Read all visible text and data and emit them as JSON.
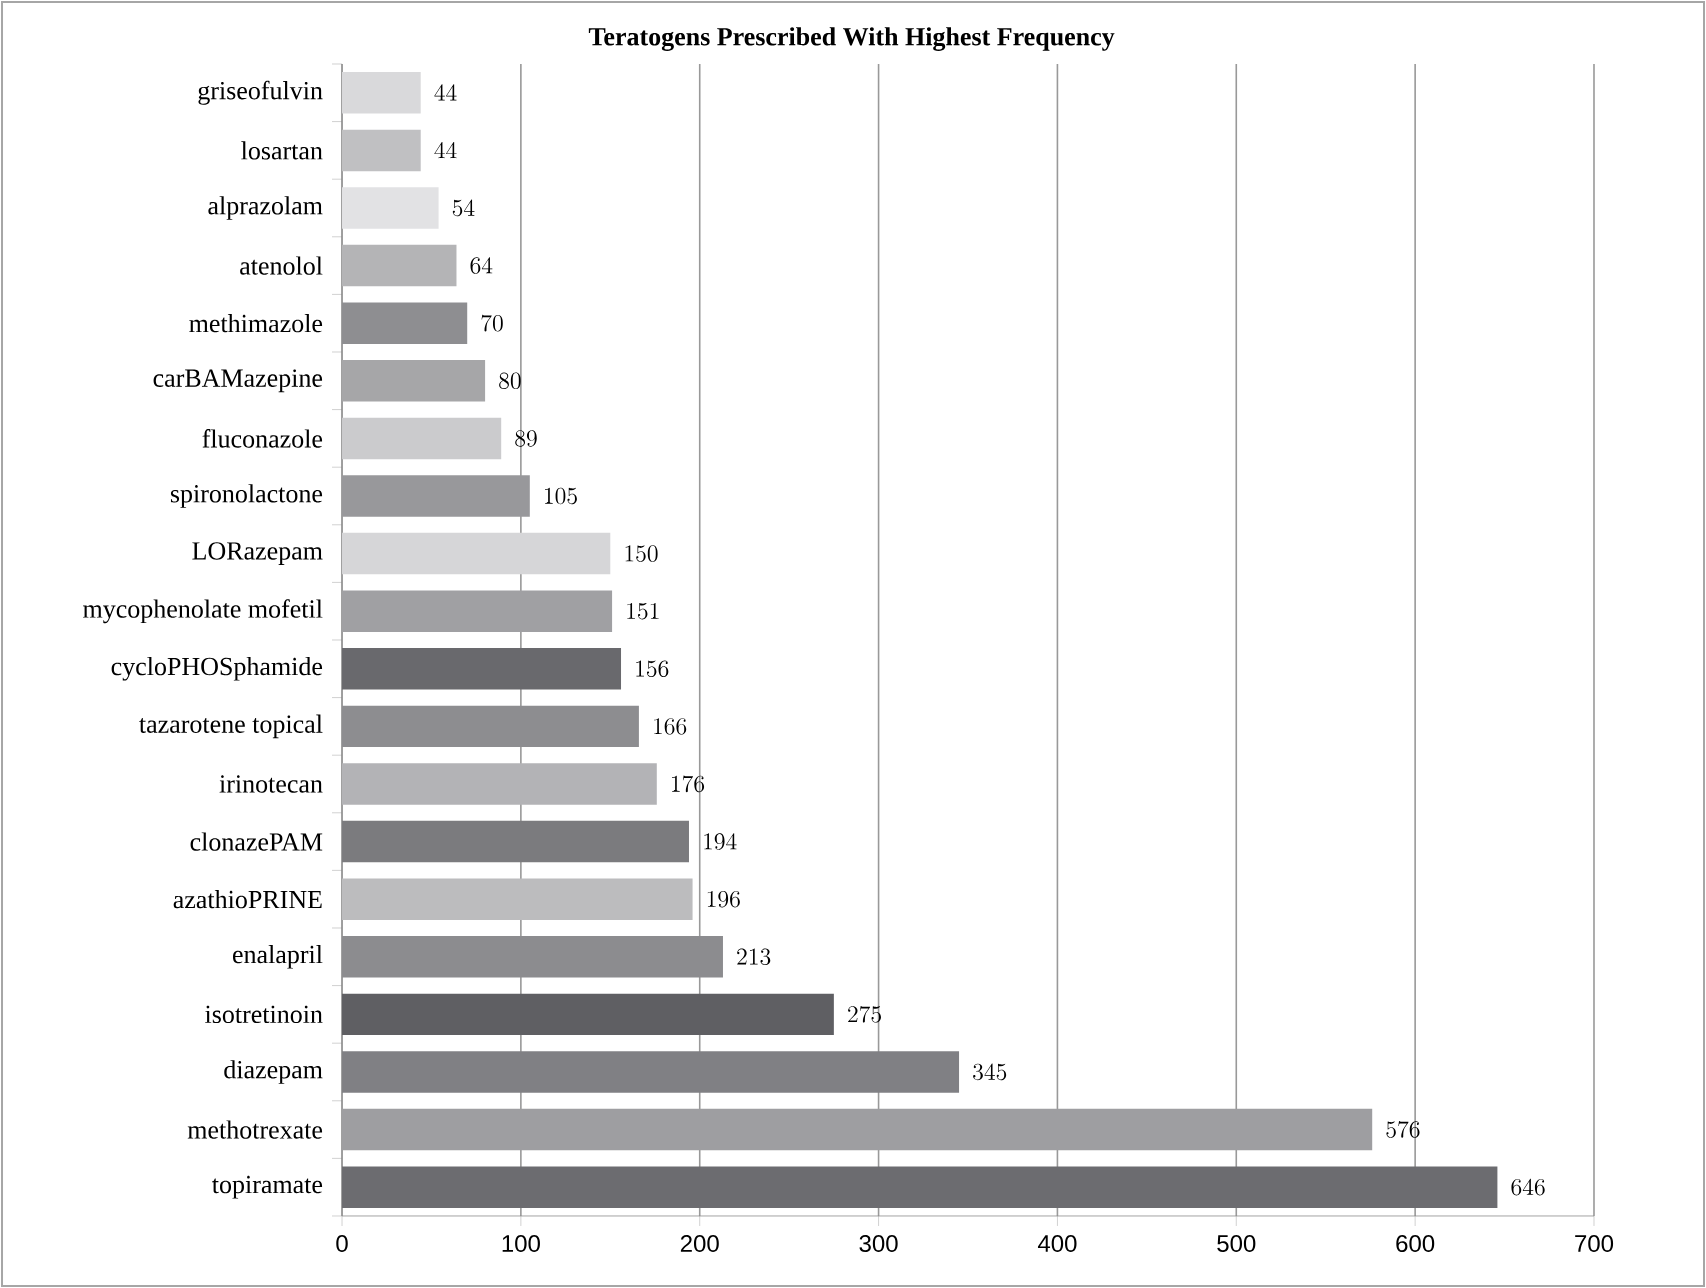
{
  "chart_data": {
    "type": "bar",
    "orientation": "horizontal",
    "title": "Teratogens Prescribed With Highest Frequency",
    "categories": [
      "griseofulvin",
      "losartan",
      "alprazolam",
      "atenolol",
      "methimazole",
      "carBAMazepine",
      "fluconazole",
      "spironolactone",
      "LORazepam",
      "mycophenolate mofetil",
      "cycloPHOSphamide",
      "tazarotene topical",
      "irinotecan",
      "clonazePAM",
      "azathioPRINE",
      "enalapril",
      "isotretinoin",
      "diazepam",
      "methotrexate",
      "topiramate"
    ],
    "values": [
      44,
      44,
      54,
      64,
      70,
      80,
      89,
      105,
      150,
      151,
      156,
      166,
      176,
      194,
      196,
      213,
      275,
      345,
      576,
      646
    ],
    "colors": [
      "#d9d9db",
      "#c0c0c2",
      "#e2e2e4",
      "#b4b4b6",
      "#8e8e91",
      "#a6a6a8",
      "#cbcbcd",
      "#98989b",
      "#d6d6d8",
      "#a0a0a3",
      "#69696d",
      "#8d8d90",
      "#b3b3b6",
      "#7b7b7e",
      "#bcbcbe",
      "#8c8c8f",
      "#5f5f63",
      "#808084",
      "#9e9ea1",
      "#6c6c70"
    ],
    "xlim": [
      0,
      700
    ],
    "xticks": [
      0,
      100,
      200,
      300,
      400,
      500,
      600,
      700
    ],
    "grid": "x",
    "data_labels": true
  }
}
